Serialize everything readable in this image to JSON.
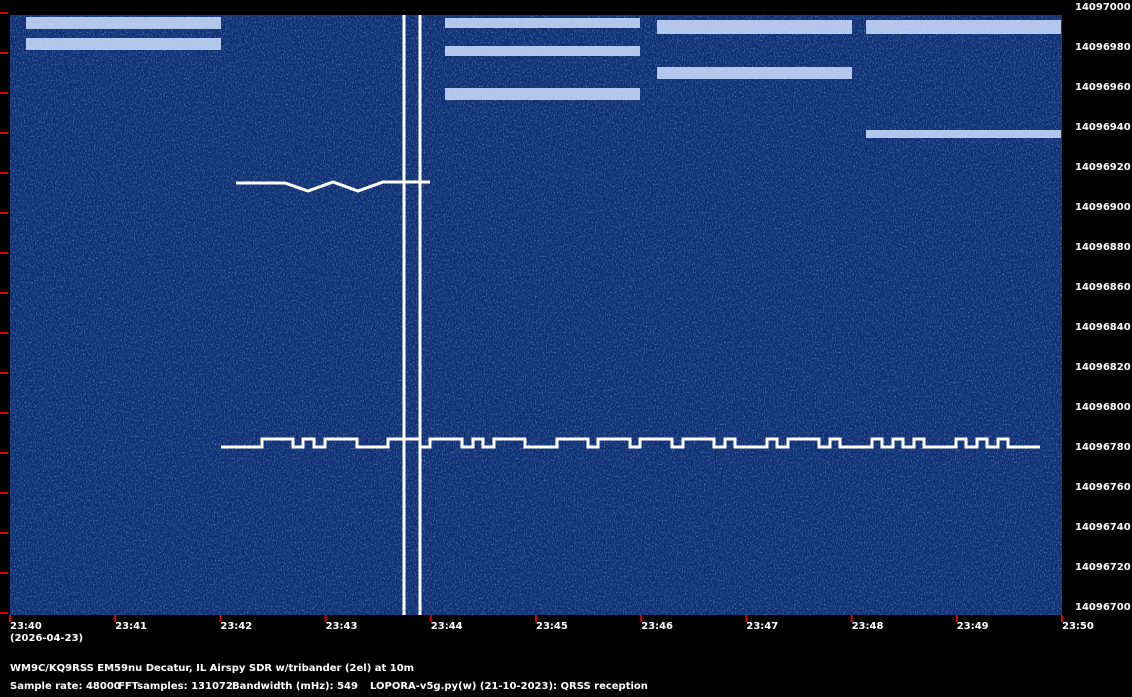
{
  "chart_data": {
    "type": "spectrogram",
    "categories": [
      "23:40",
      "23:41",
      "23:42",
      "23:43",
      "23:44",
      "23:45",
      "23:46",
      "23:47",
      "23:48",
      "23:49",
      "23:50"
    ],
    "date_label": "(2026-04-23)",
    "ylim": [
      14096700,
      14097000
    ],
    "yticks": [
      14096700,
      14096720,
      14096740,
      14096760,
      14096780,
      14096800,
      14096820,
      14096840,
      14096860,
      14096880,
      14096900,
      14096920,
      14096940,
      14096960,
      14096980,
      14097000
    ],
    "tick_color": "#e00000",
    "background_color": "#0d2f72",
    "footer": {
      "station": "WM9C/KQ9RSS EM59nu Decatur, IL  Airspy SDR w/tribander (2el) at 10m",
      "sample_rate": "Sample rate: 48000",
      "fft_samples": "FFTsamples: 131072",
      "bandwidth": "Bandwidth (mHz): 549",
      "software": "LOPORA-v5g.py(w) (21-10-2023): QRSS reception"
    }
  }
}
